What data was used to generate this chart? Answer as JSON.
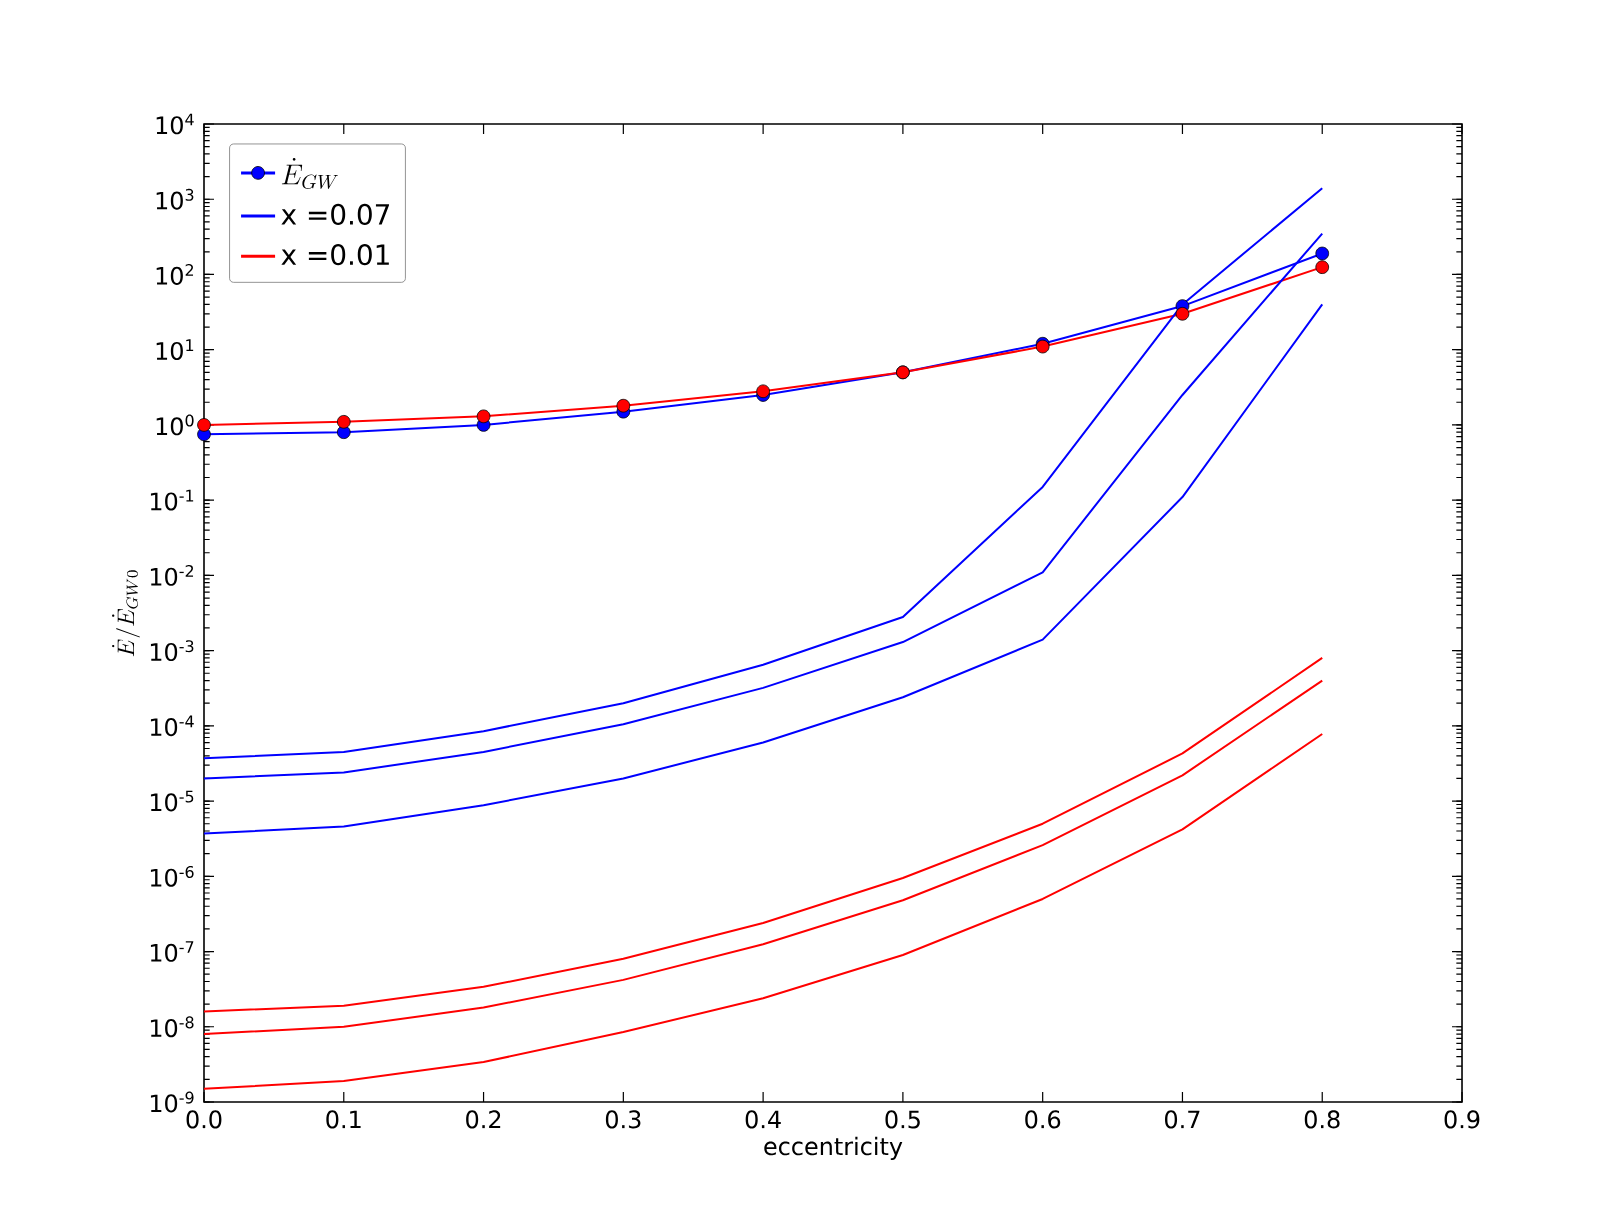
{
  "chart_data": {
    "type": "line",
    "xlabel": "eccentricity",
    "ylabel": "\\dot{E}/\\dot{E}_{GW0}",
    "x": [
      0,
      0.1,
      0.2,
      0.3,
      0.4,
      0.5,
      0.6,
      0.7,
      0.8
    ],
    "series": [
      {
        "name": "\\dot{E}_{GW}",
        "color": "#0000ff",
        "marker": "circle",
        "values": [
          0.75,
          0.8,
          1.0,
          1.5,
          2.5,
          5,
          12,
          38,
          190
        ]
      },
      {
        "color": "#ff0000",
        "marker": "circle",
        "values": [
          1.0,
          1.1,
          1.3,
          1.8,
          2.8,
          5,
          11,
          30,
          125
        ]
      },
      {
        "color": "#0000ff",
        "values": [
          3.7e-05,
          4.5e-05,
          8.5e-05,
          0.0002,
          0.00065,
          0.0028,
          0.15,
          40,
          1400
        ]
      },
      {
        "name": "x =0.07",
        "color": "#0000ff",
        "values": [
          2e-05,
          2.4e-05,
          4.5e-05,
          0.000105,
          0.00032,
          0.0013,
          0.011,
          2.5,
          350
        ]
      },
      {
        "color": "#0000ff",
        "values": [
          3.7e-06,
          4.6e-06,
          8.8e-06,
          2e-05,
          6e-05,
          0.00024,
          0.0014,
          0.11,
          40
        ]
      },
      {
        "color": "#ff0000",
        "values": [
          1.6e-08,
          1.9e-08,
          3.4e-08,
          8e-08,
          2.4e-07,
          9.5e-07,
          5e-06,
          4.3e-05,
          0.0008
        ]
      },
      {
        "name": "x =0.01",
        "color": "#ff0000",
        "values": [
          8e-09,
          1e-08,
          1.8e-08,
          4.2e-08,
          1.25e-07,
          4.8e-07,
          2.6e-06,
          2.2e-05,
          0.0004
        ]
      },
      {
        "color": "#ff0000",
        "values": [
          1.5e-09,
          1.9e-09,
          3.4e-09,
          8.5e-09,
          2.4e-08,
          9e-08,
          5e-07,
          4.2e-06,
          7.8e-05
        ]
      }
    ],
    "log": "y",
    "xlim": [
      0,
      0.9
    ],
    "ylim": [
      1e-09,
      10000.0
    ],
    "xticks": [
      {
        "value": 0,
        "label": "0.0"
      },
      {
        "value": 0.1,
        "label": "0.1"
      },
      {
        "value": 0.2,
        "label": "0.2"
      },
      {
        "value": 0.3,
        "label": "0.3"
      },
      {
        "value": 0.4,
        "label": "0.4"
      },
      {
        "value": 0.5,
        "label": "0.5"
      },
      {
        "value": 0.6,
        "label": "0.6"
      },
      {
        "value": 0.7,
        "label": "0.7"
      },
      {
        "value": 0.8,
        "label": "0.8"
      },
      {
        "value": 0.9,
        "label": "0.9"
      }
    ],
    "yticks": [
      {
        "value": 1e-09,
        "label": "10$^{-9}$"
      },
      {
        "value": 1e-08,
        "label": "10$^{-8}$"
      },
      {
        "value": 1e-07,
        "label": "10$^{-7}$"
      },
      {
        "value": 1e-06,
        "label": "10$^{-6}$"
      },
      {
        "value": 1e-05,
        "label": "10$^{-5}$"
      },
      {
        "value": 0.0001,
        "label": "10$^{-4}$"
      },
      {
        "value": 0.001,
        "label": "10$^{-3}$"
      },
      {
        "value": 0.01,
        "label": "10$^{-2}$"
      },
      {
        "value": 0.1,
        "label": "10$^{-1}$"
      },
      {
        "value": 1,
        "label": "10$^{0}$"
      },
      {
        "value": 10,
        "label": "10$^{1}$"
      },
      {
        "value": 100,
        "label": "10$^{2}$"
      },
      {
        "value": 1000,
        "label": "10$^{3}$"
      },
      {
        "value": 10000,
        "label": "10$^{4}$"
      }
    ],
    "grid": false,
    "legend": "top left"
  }
}
